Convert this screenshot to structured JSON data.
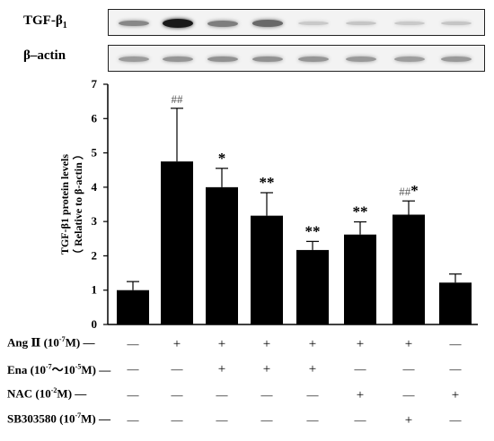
{
  "blots": [
    {
      "label": "TGF-β",
      "sub": "1",
      "bands": [
        0.45,
        1.0,
        0.5,
        0.6,
        0.12,
        0.14,
        0.12,
        0.14
      ]
    },
    {
      "label": "β–actin",
      "sub": "",
      "bands": [
        0.35,
        0.38,
        0.4,
        0.4,
        0.38,
        0.36,
        0.34,
        0.36
      ]
    }
  ],
  "chart_data": {
    "type": "bar",
    "ylabel": "TGF-β1 protein levels",
    "ylabel2": "（ Relative to β-actin ）",
    "ylim": [
      0,
      7
    ],
    "yticks": [
      "0",
      "1",
      "2",
      "3",
      "4",
      "5",
      "6",
      "7"
    ],
    "values": [
      1.0,
      4.75,
      4.0,
      3.17,
      2.17,
      2.62,
      3.2,
      1.22
    ],
    "errors": [
      0.25,
      1.55,
      0.55,
      0.67,
      0.25,
      0.37,
      0.4,
      0.25
    ],
    "annotations": [
      {
        "hash": "",
        "star": ""
      },
      {
        "hash": "##",
        "star": ""
      },
      {
        "hash": "",
        "star": "*"
      },
      {
        "hash": "",
        "star": "**"
      },
      {
        "hash": "",
        "star": "**"
      },
      {
        "hash": "",
        "star": "**"
      },
      {
        "hash": "##",
        "star": "*"
      },
      {
        "hash": "",
        "star": ""
      }
    ],
    "conditions": [
      {
        "name": "Ang Ⅱ (10",
        "exp": "-7",
        "unit": "M)",
        "marks": [
          "—",
          "+",
          "+",
          "+",
          "+",
          "+",
          "+",
          "—"
        ]
      },
      {
        "name": "Ena (10",
        "exp": "-7",
        "unit": "～10",
        "exp2": "-5",
        "unit2": "M)",
        "marks": [
          "—",
          "—",
          "+",
          "+",
          "+",
          "—",
          "—",
          "—"
        ]
      },
      {
        "name": "NAC (10",
        "exp": "-2",
        "unit": "M)",
        "marks": [
          "—",
          "—",
          "—",
          "—",
          "—",
          "+",
          "—",
          "+"
        ]
      },
      {
        "name": "SB303580 (10",
        "exp": "-7",
        "unit": "M)",
        "marks": [
          "—",
          "—",
          "—",
          "—",
          "—",
          "—",
          "+",
          "—"
        ]
      }
    ]
  }
}
